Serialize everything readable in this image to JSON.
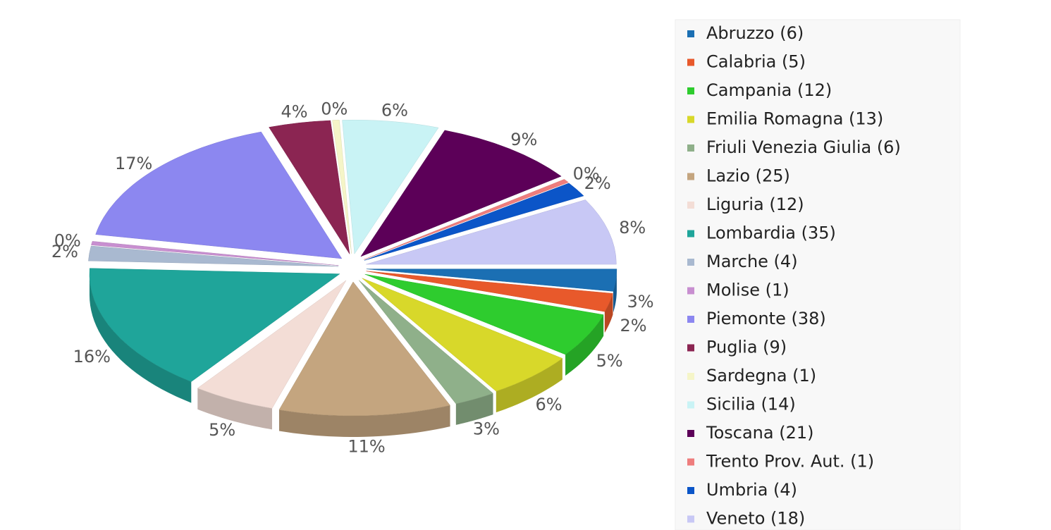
{
  "chart_data": {
    "type": "pie",
    "categories": [
      "Abruzzo (6)",
      "Calabria (5)",
      "Campania (12)",
      "Emilia Romagna (13)",
      "Friuli Venezia Giulia (6)",
      "Lazio (25)",
      "Liguria (12)",
      "Lombardia (35)",
      "Marche (4)",
      "Molise (1)",
      "Piemonte (38)",
      "Puglia (9)",
      "Sardegna (1)",
      "Sicilia (14)",
      "Toscana (21)",
      "Trento Prov. Aut. (1)",
      "Umbria (4)",
      "Veneto (18)"
    ],
    "values": [
      6,
      5,
      12,
      13,
      6,
      25,
      12,
      35,
      4,
      1,
      38,
      9,
      1,
      14,
      21,
      1,
      4,
      18
    ],
    "value_labels": [
      "3%",
      "2%",
      "5%",
      "6%",
      "3%",
      "11%",
      "5%",
      "16%",
      "2%",
      "0%",
      "17%",
      "4%",
      "0%",
      "6%",
      "9%",
      "0%",
      "2%",
      "8%"
    ],
    "colors": [
      "#1b6fb3",
      "#e8592b",
      "#2ecc2e",
      "#d8d82a",
      "#8fb08a",
      "#c4a57f",
      "#f3ddd6",
      "#1fa59a",
      "#a9b9d0",
      "#c88fd0",
      "#8c87f0",
      "#8b2552",
      "#f5f5c8",
      "#c9f3f5",
      "#5c0058",
      "#ee7d7d",
      "#0b55c8",
      "#c8c8f5"
    ],
    "legend": "right"
  }
}
